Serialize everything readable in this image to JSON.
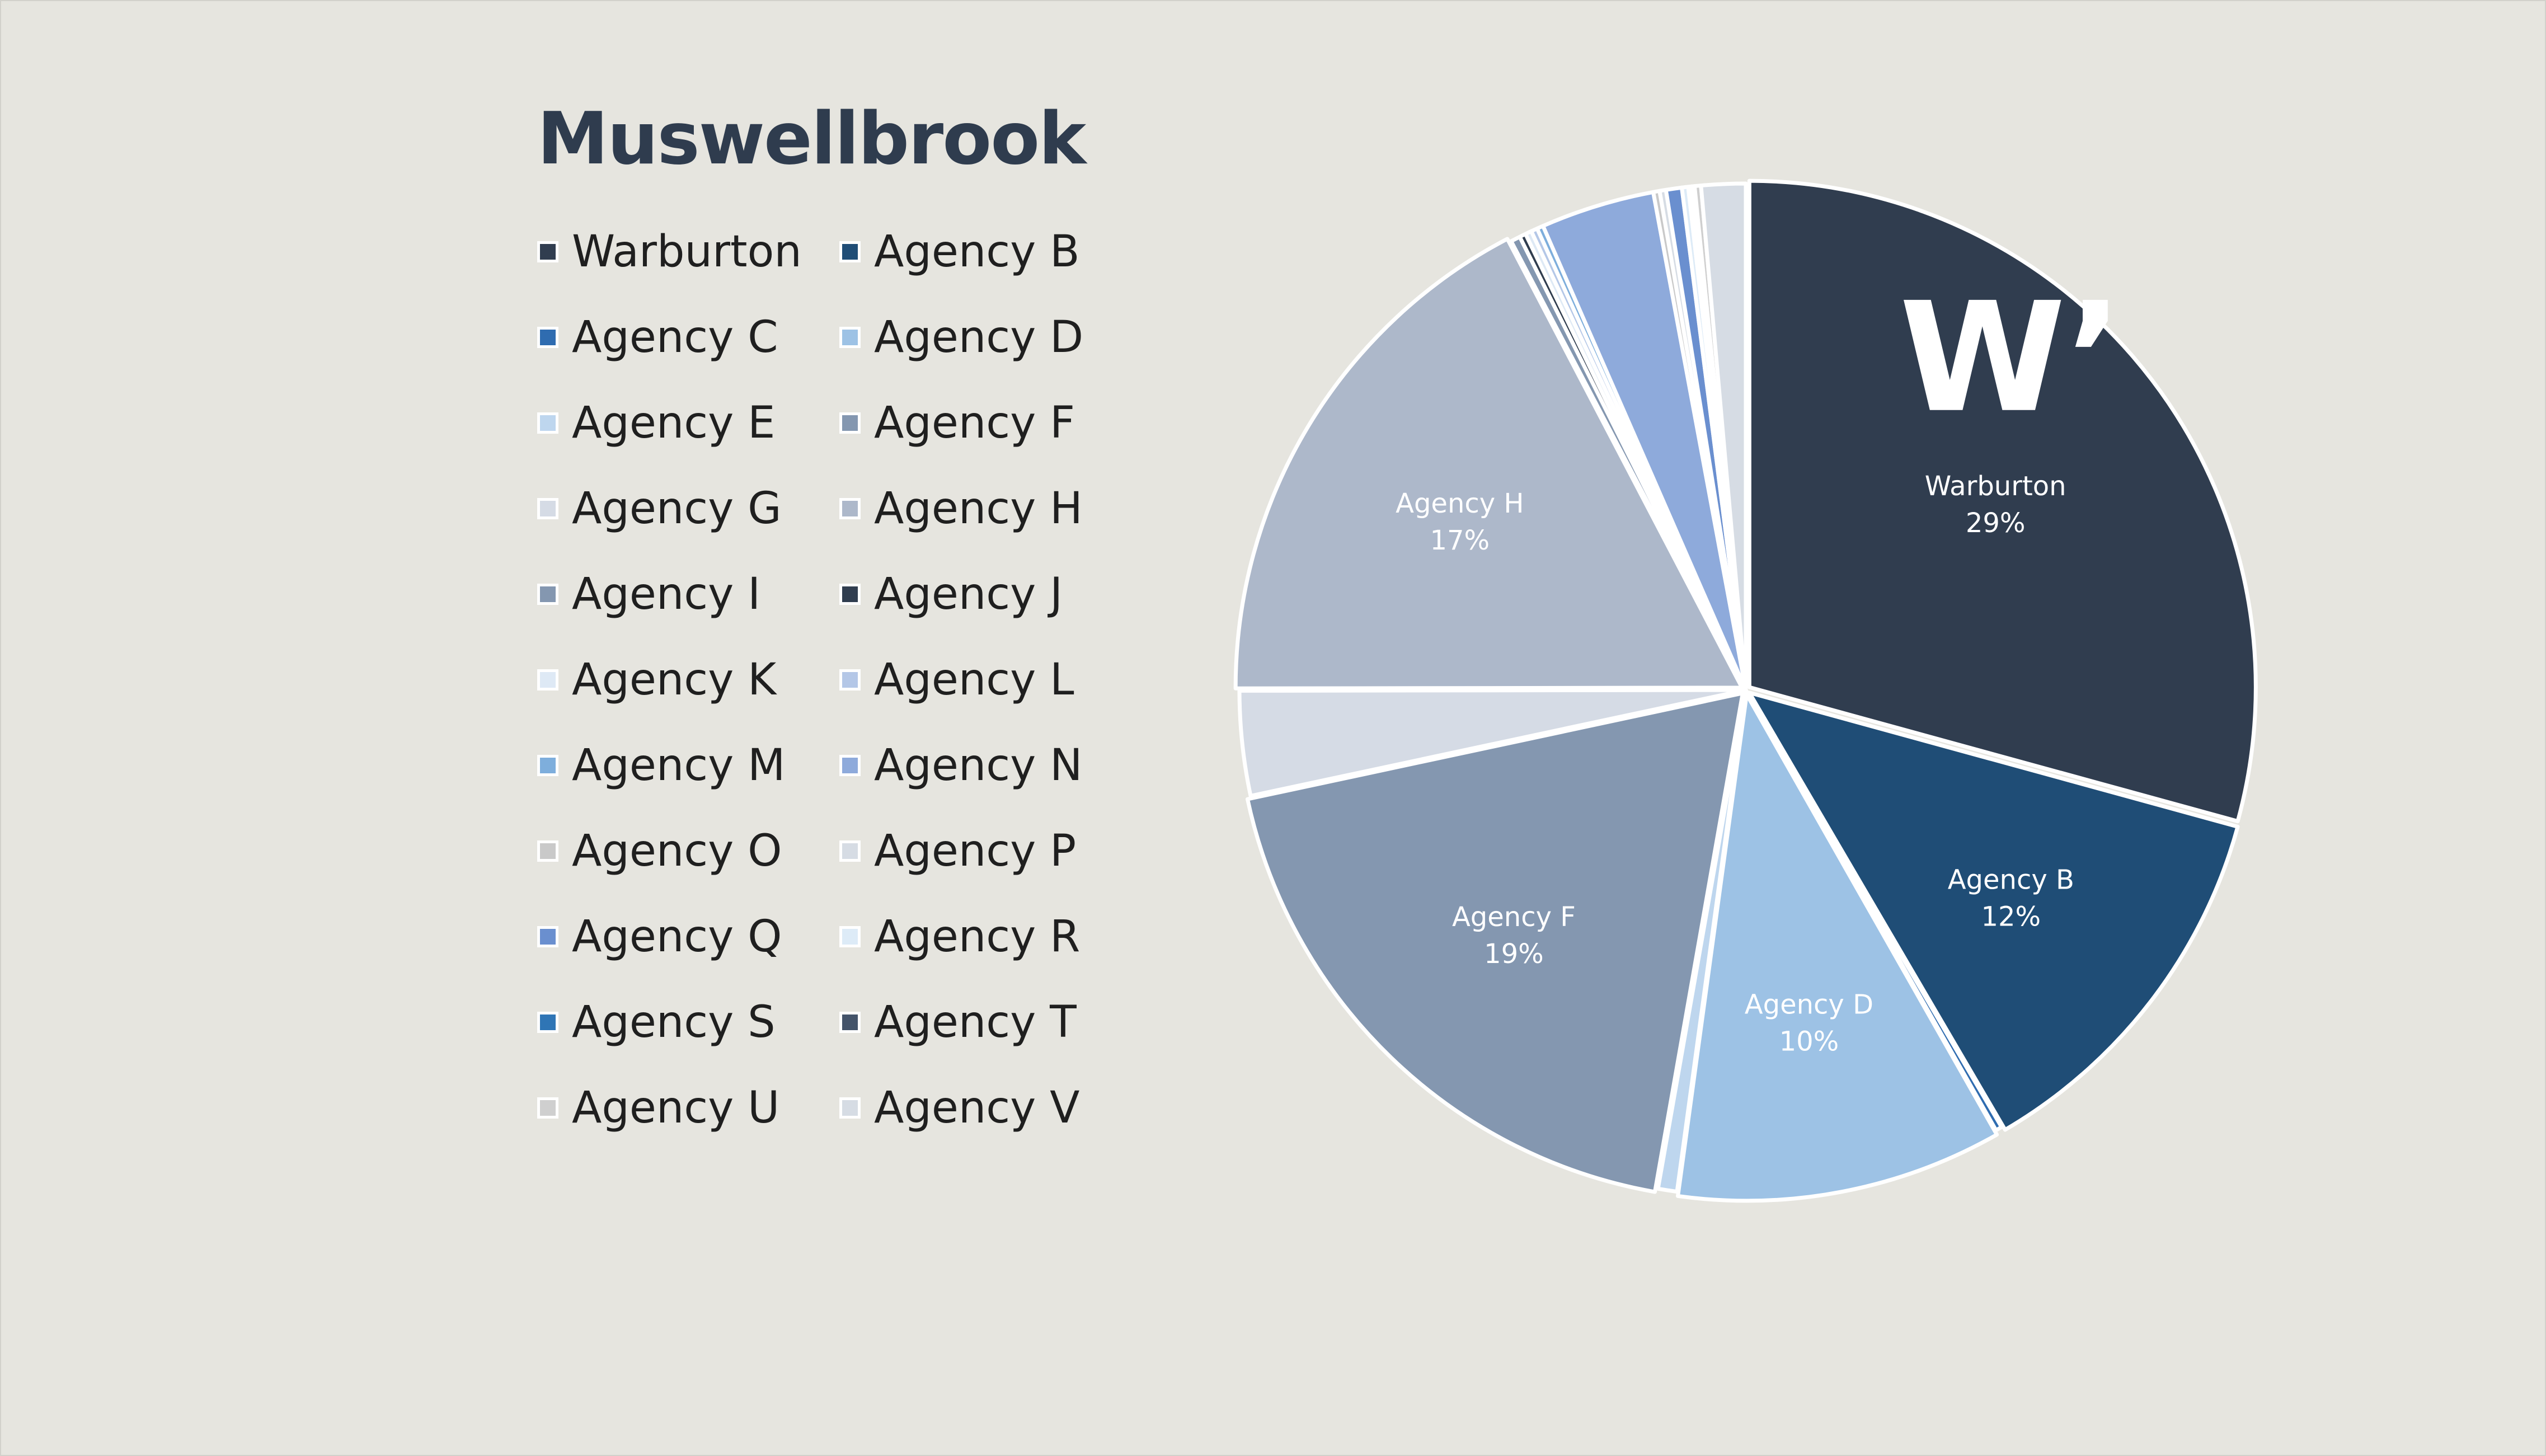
{
  "chart_data": {
    "type": "pie",
    "title": "Muswellbrook",
    "start_angle_deg": 0,
    "direction": "clockwise",
    "slices": [
      {
        "name": "Warburton",
        "value": 29.0,
        "color": "#303d4f",
        "label": "Warburton",
        "pct_label": "29%",
        "logo": "W’"
      },
      {
        "name": "Agency B",
        "value": 12.2,
        "color": "#1f4d76",
        "label": "Agency B",
        "pct_label": "12%"
      },
      {
        "name": "Agency C",
        "value": 0.2,
        "color": "#2f6cb0"
      },
      {
        "name": "Agency D",
        "value": 10.3,
        "color": "#9dc2e5",
        "label": "Agency D",
        "pct_label": "10%"
      },
      {
        "name": "Agency E",
        "value": 0.6,
        "color": "#bed6ee"
      },
      {
        "name": "Agency F",
        "value": 18.7,
        "color": "#8497b0",
        "label": "Agency F",
        "pct_label": "19%"
      },
      {
        "name": "Agency G",
        "value": 3.3,
        "color": "#d5dbe5"
      },
      {
        "name": "Agency H",
        "value": 17.2,
        "color": "#adb8ca",
        "label": "Agency H",
        "pct_label": "17%"
      },
      {
        "name": "Agency I",
        "value": 0.3,
        "color": "#8497b0"
      },
      {
        "name": "Agency J",
        "value": 0.2,
        "color": "#303d4f"
      },
      {
        "name": "Agency K",
        "value": 0.2,
        "color": "#dee9f5"
      },
      {
        "name": "Agency L",
        "value": 0.2,
        "color": "#b4c7e7"
      },
      {
        "name": "Agency M",
        "value": 0.2,
        "color": "#7eaedc"
      },
      {
        "name": "Agency N",
        "value": 3.6,
        "color": "#8eaadb"
      },
      {
        "name": "Agency O",
        "value": 0.2,
        "color": "#c9c9c9"
      },
      {
        "name": "Agency P",
        "value": 0.2,
        "color": "#d6dce4"
      },
      {
        "name": "Agency Q",
        "value": 0.5,
        "color": "#6a8fcf"
      },
      {
        "name": "Agency R",
        "value": 0.2,
        "color": "#ddebf7"
      },
      {
        "name": "Agency S",
        "value": 0.1,
        "color": "#2f75b5"
      },
      {
        "name": "Agency T",
        "value": 0.1,
        "color": "#44546a"
      },
      {
        "name": "Agency U",
        "value": 0.2,
        "color": "#cfcfcf"
      },
      {
        "name": "Agency V",
        "value": 1.4,
        "color": "#d6dce4"
      }
    ]
  }
}
